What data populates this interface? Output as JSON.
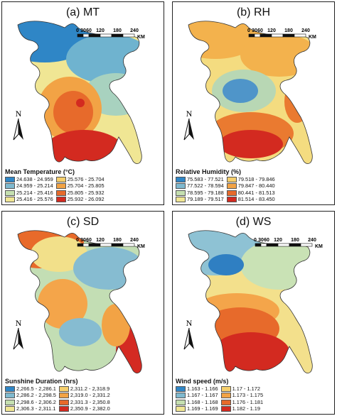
{
  "scale": {
    "ticks": [
      "0",
      "30",
      "60",
      "120",
      "180",
      "240"
    ],
    "unit": "KM"
  },
  "north_label": "N",
  "panels": [
    {
      "title": "(a) MT",
      "legend_title": "Mean Temperature (°C)",
      "palette": [
        "#2f86c6",
        "#6fb3cf",
        "#a8d2bf",
        "#f0e694",
        "#f2a345",
        "#e76a2b",
        "#d32a20"
      ],
      "legend": [
        {
          "label": "24.638 - 24.959",
          "color": "#2f86c6"
        },
        {
          "label": "25.576 - 25.704",
          "color": "#f6cf6c"
        },
        {
          "label": "24.959 - 25.214",
          "color": "#7fb9cf"
        },
        {
          "label": "25.704 - 25.805",
          "color": "#f2a345"
        },
        {
          "label": "25.214 - 25.416",
          "color": "#c5dfb0"
        },
        {
          "label": "25.805 - 25.932",
          "color": "#e76a2b"
        },
        {
          "label": "25.416 - 25.576",
          "color": "#f0e694"
        },
        {
          "label": "25.932 - 26.092",
          "color": "#d32a20"
        }
      ]
    },
    {
      "title": "(b) RH",
      "legend_title": "Relative Humidity (%)",
      "palette": [
        "#f3b24d",
        "#f4dc80",
        "#b8d7b4",
        "#4f95c9",
        "#f4dc80",
        "#ea7a30",
        "#d32a20"
      ],
      "legend": [
        {
          "label": "75.583 - 77.521",
          "color": "#2f86c6"
        },
        {
          "label": "79.518 - 79.846",
          "color": "#f6cf6c"
        },
        {
          "label": "77.522 - 78.594",
          "color": "#7fb9cf"
        },
        {
          "label": "79.847 - 80.440",
          "color": "#f2a345"
        },
        {
          "label": "78.595 - 79.188",
          "color": "#c5dfb0"
        },
        {
          "label": "80.441 - 81.513",
          "color": "#e76a2b"
        },
        {
          "label": "79.189 - 79.517",
          "color": "#f0e694"
        },
        {
          "label": "81.514 - 83.450",
          "color": "#d32a20"
        }
      ]
    },
    {
      "title": "(c) SD",
      "legend_title": "Sunshine Duration (hrs)",
      "palette": [
        "#e86a2a",
        "#f4a54a",
        "#f2e08a",
        "#c3deb4",
        "#86bcd1",
        "#f2a345",
        "#d42a22"
      ],
      "legend": [
        {
          "label": "2,266.5 - 2,286.1",
          "color": "#2f86c6"
        },
        {
          "label": "2,311.2 - 2,318.9",
          "color": "#f6cf6c"
        },
        {
          "label": "2,286.2 - 2,298.5",
          "color": "#7fb9cf"
        },
        {
          "label": "2,319.0 - 2,331.2",
          "color": "#f2a345"
        },
        {
          "label": "2,298.6 - 2,306.2",
          "color": "#c5dfb0"
        },
        {
          "label": "2,331.3 - 2,350.8",
          "color": "#e76a2b"
        },
        {
          "label": "2,306.3 - 2,311.1",
          "color": "#f0e694"
        },
        {
          "label": "2,350.9 - 2,382.0",
          "color": "#d32a20"
        }
      ]
    },
    {
      "title": "(d) WS",
      "legend_title": "Wind speed (m/s)",
      "palette": [
        "#8ec2d4",
        "#c9e2b5",
        "#f3e08c",
        "#f4a54a",
        "#e76a2b",
        "#d32a20",
        "#2f7fc2"
      ],
      "legend": [
        {
          "label": "1.163 - 1.166",
          "color": "#2f86c6"
        },
        {
          "label": "1.17 - 1.172",
          "color": "#f6cf6c"
        },
        {
          "label": "1.167 - 1.167",
          "color": "#7fb9cf"
        },
        {
          "label": "1.173 - 1.175",
          "color": "#f2a345"
        },
        {
          "label": "1.168 - 1.168",
          "color": "#c5dfb0"
        },
        {
          "label": "1.176 - 1.181",
          "color": "#e76a2b"
        },
        {
          "label": "1.169 - 1.169",
          "color": "#f0e694"
        },
        {
          "label": "1.182 - 1.19",
          "color": "#d32a20"
        }
      ]
    }
  ]
}
